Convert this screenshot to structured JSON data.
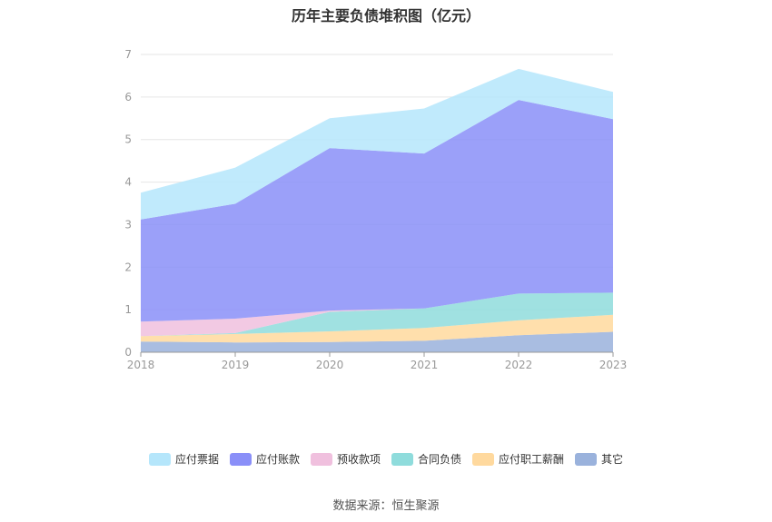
{
  "title": "历年主要负债堆积图（亿元）",
  "source": "数据来源：恒生聚源",
  "chart_data": {
    "type": "area",
    "stacked": true,
    "title": "历年主要负债堆积图（亿元）",
    "x": [
      "2018",
      "2019",
      "2020",
      "2021",
      "2022",
      "2023"
    ],
    "ylim": [
      0,
      7
    ],
    "yticks": [
      "0",
      "1",
      "2",
      "3",
      "4",
      "5",
      "6",
      "7"
    ],
    "grid": true,
    "legend_position": "bottom",
    "series": [
      {
        "name": "其它",
        "color": "#9ab2dc",
        "values": [
          0.25,
          0.23,
          0.24,
          0.27,
          0.4,
          0.48
        ]
      },
      {
        "name": "应付职工薪酬",
        "color": "#ffd99e",
        "values": [
          0.13,
          0.2,
          0.25,
          0.3,
          0.35,
          0.4
        ]
      },
      {
        "name": "合同负债",
        "color": "#8fdcdc",
        "values": [
          0.0,
          0.02,
          0.46,
          0.46,
          0.63,
          0.52
        ]
      },
      {
        "name": "预收款项",
        "color": "#f0c0de",
        "values": [
          0.34,
          0.34,
          0.03,
          0.0,
          0.0,
          0.0
        ]
      },
      {
        "name": "应付账款",
        "color": "#8a8ff8",
        "values": [
          2.4,
          2.7,
          3.82,
          3.64,
          4.55,
          4.08
        ]
      },
      {
        "name": "应付票据",
        "color": "#b5e6fb",
        "values": [
          0.63,
          0.85,
          0.7,
          1.06,
          0.73,
          0.64
        ]
      }
    ],
    "legend_order": [
      "应付票据",
      "应付账款",
      "预收款项",
      "合同负债",
      "应付职工薪酬",
      "其它"
    ]
  }
}
